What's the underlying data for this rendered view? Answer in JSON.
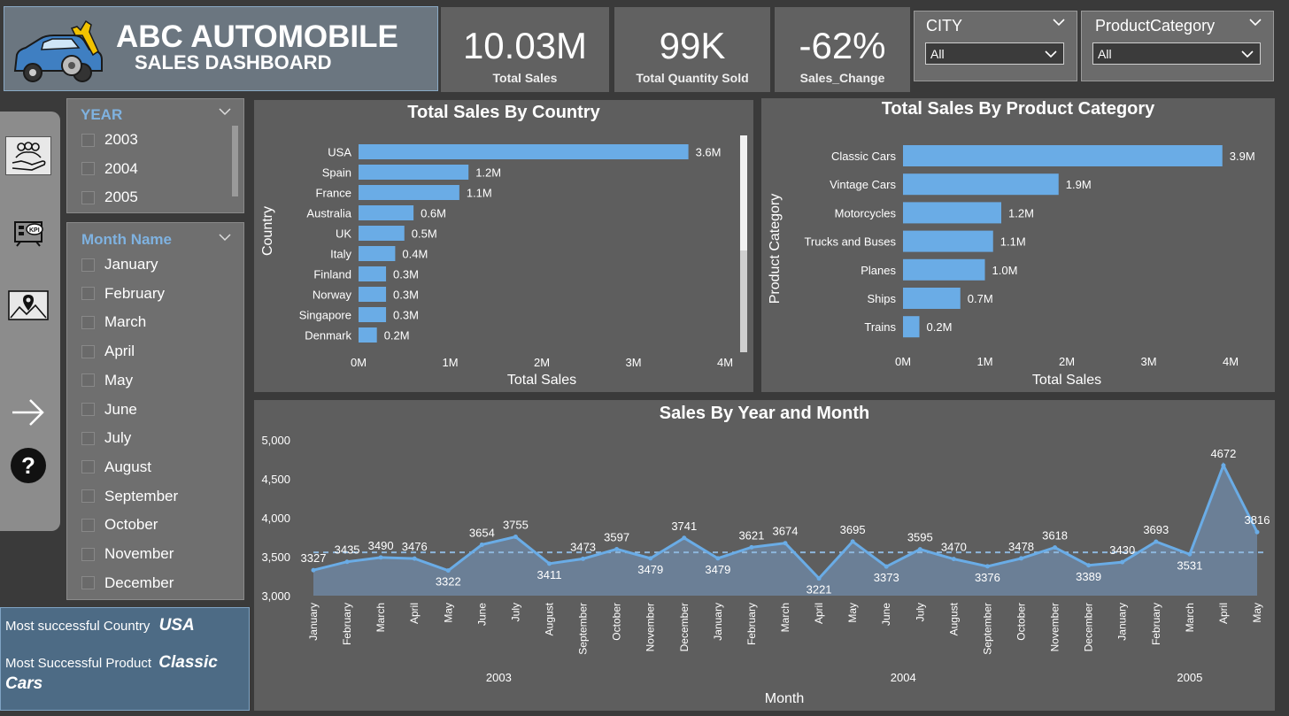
{
  "header": {
    "title": "ABC AUTOMOBILE",
    "subtitle": "SALES DASHBOARD"
  },
  "kpis": [
    {
      "value": "10.03M",
      "label": "Total Sales"
    },
    {
      "value": "99K",
      "label": "Total Quantity Sold"
    },
    {
      "value": "-62%",
      "label": "Sales_Change"
    }
  ],
  "filters": {
    "city": {
      "label": "CITY",
      "value": "All"
    },
    "product_category": {
      "label": "ProductCategory",
      "value": "All"
    }
  },
  "year_slicer": {
    "label": "YEAR",
    "items": [
      "2003",
      "2004",
      "2005"
    ]
  },
  "month_slicer": {
    "label": "Month Name",
    "items": [
      "January",
      "February",
      "March",
      "April",
      "May",
      "June",
      "July",
      "August",
      "September",
      "October",
      "November",
      "December"
    ]
  },
  "insights": {
    "country_label": "Most successful Country",
    "country_value": "USA",
    "product_label": "Most Successful Product",
    "product_value_1": "Classic",
    "product_value_2": "Cars"
  },
  "colors": {
    "bar": "#6aace6",
    "panel": "#5e5e5e",
    "accent": "#7fb2e0"
  },
  "nav_icons": [
    "people-hand-icon",
    "kpi-icon",
    "map-pin-icon",
    "arrow-right-icon",
    "help-icon"
  ],
  "chart_data": [
    {
      "type": "bar",
      "title": "Total Sales By Country",
      "xlabel": "Total Sales",
      "ylabel": "Country",
      "orientation": "horizontal",
      "categories": [
        "USA",
        "Spain",
        "France",
        "Australia",
        "UK",
        "Italy",
        "Finland",
        "Norway",
        "Singapore",
        "Denmark"
      ],
      "values": [
        3.6,
        1.2,
        1.1,
        0.6,
        0.5,
        0.4,
        0.3,
        0.3,
        0.3,
        0.2
      ],
      "data_labels": [
        "3.6M",
        "1.2M",
        "1.1M",
        "0.6M",
        "0.5M",
        "0.4M",
        "0.3M",
        "0.3M",
        "0.3M",
        "0.2M"
      ],
      "xticks": [
        "0M",
        "1M",
        "2M",
        "3M",
        "4M"
      ],
      "xlim": [
        0,
        4
      ],
      "grid": false
    },
    {
      "type": "bar",
      "title": "Total Sales By Product Category",
      "xlabel": "Total Sales",
      "ylabel": "Product Category",
      "orientation": "horizontal",
      "categories": [
        "Classic Cars",
        "Vintage Cars",
        "Motorcycles",
        "Trucks and Buses",
        "Planes",
        "Ships",
        "Trains"
      ],
      "values": [
        3.9,
        1.9,
        1.2,
        1.1,
        1.0,
        0.7,
        0.2
      ],
      "data_labels": [
        "3.9M",
        "1.9M",
        "1.2M",
        "1.1M",
        "1.0M",
        "0.7M",
        "0.2M"
      ],
      "xticks": [
        "0M",
        "1M",
        "2M",
        "3M",
        "4M"
      ],
      "xlim": [
        0,
        4
      ],
      "grid": false
    },
    {
      "type": "area",
      "title": "Sales By Year and Month",
      "xlabel": "Month",
      "ylabel": "",
      "x": [
        "January",
        "February",
        "March",
        "April",
        "May",
        "June",
        "July",
        "August",
        "September",
        "October",
        "November",
        "December",
        "January",
        "February",
        "March",
        "April",
        "May",
        "June",
        "July",
        "August",
        "September",
        "October",
        "November",
        "December",
        "January",
        "February",
        "March",
        "April",
        "May"
      ],
      "years": [
        {
          "label": "2003",
          "start": 0,
          "end": 11
        },
        {
          "label": "2004",
          "start": 12,
          "end": 23
        },
        {
          "label": "2005",
          "start": 24,
          "end": 28
        }
      ],
      "values": [
        3327,
        3435,
        3490,
        3476,
        3322,
        3654,
        3755,
        3411,
        3473,
        3597,
        3479,
        3741,
        3479,
        3621,
        3674,
        3221,
        3695,
        3373,
        3595,
        3470,
        3376,
        3478,
        3618,
        3389,
        3430,
        3693,
        3531,
        4672,
        3816
      ],
      "yticks": [
        "3,000",
        "3,500",
        "4,000",
        "4,500",
        "5,000"
      ],
      "ylim": [
        3000,
        5000
      ],
      "average_line": 3555,
      "grid": false
    }
  ]
}
